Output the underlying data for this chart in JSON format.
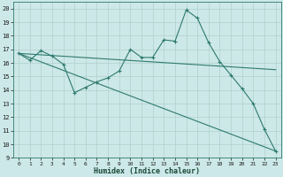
{
  "xlabel": "Humidex (Indice chaleur)",
  "bg_color": "#cde8e8",
  "line_color": "#2d7a6e",
  "grid_color": "#b0d0cc",
  "xlim": [
    -0.5,
    23.5
  ],
  "ylim": [
    9,
    20.5
  ],
  "yticks": [
    9,
    10,
    11,
    12,
    13,
    14,
    15,
    16,
    17,
    18,
    19,
    20
  ],
  "xticks": [
    0,
    1,
    2,
    3,
    4,
    5,
    6,
    7,
    8,
    9,
    10,
    11,
    12,
    13,
    14,
    15,
    16,
    17,
    18,
    19,
    20,
    21,
    22,
    23
  ],
  "line1_x": [
    0,
    1,
    2,
    3,
    4,
    5,
    6,
    7,
    8,
    9,
    10,
    11,
    12,
    13,
    14,
    15,
    16,
    17,
    18,
    19,
    20,
    21,
    22,
    23
  ],
  "line1_y": [
    16.7,
    16.2,
    16.9,
    16.5,
    15.9,
    13.8,
    14.2,
    14.6,
    14.9,
    15.4,
    17.0,
    16.4,
    16.4,
    17.7,
    17.6,
    19.9,
    19.3,
    17.5,
    16.1,
    15.1,
    14.1,
    13.0,
    11.1,
    9.5
  ],
  "line2_x": [
    0,
    23
  ],
  "line2_y": [
    16.7,
    15.5
  ],
  "line3_x": [
    0,
    23
  ],
  "line3_y": [
    16.7,
    9.5
  ]
}
